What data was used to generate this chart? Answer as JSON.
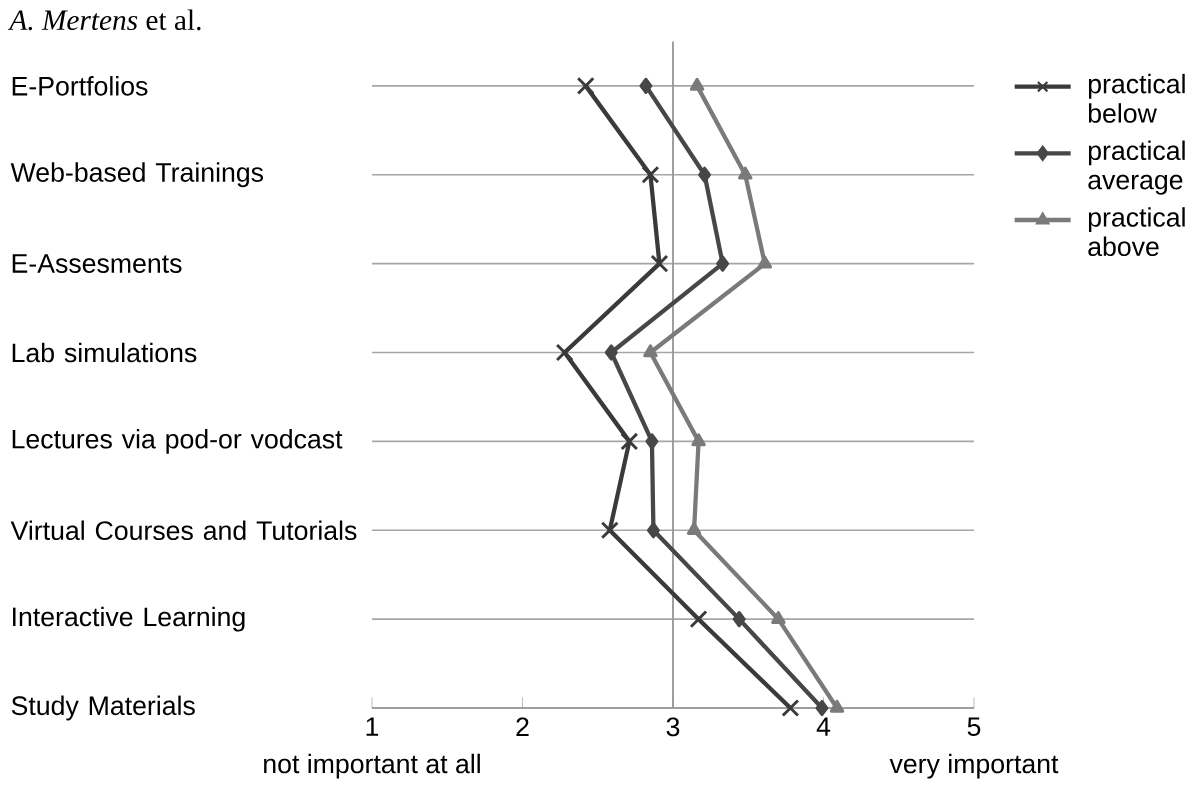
{
  "chart_data": {
    "type": "line",
    "orientation": "horizontal",
    "categories": [
      "E-Portfolios",
      "Web-based Trainings",
      "E-Assesments",
      "Lab simulations",
      "Lectures via pod-or vodcast",
      "Virtual Courses and Tutorials",
      "Interactive Learning",
      "Study Materials"
    ],
    "series": [
      {
        "name": "practical below",
        "color": "#3a3a3a",
        "marker": "cross",
        "values": [
          2.42,
          2.85,
          2.91,
          2.28,
          2.71,
          2.58,
          3.17,
          3.78
        ]
      },
      {
        "name": "practical average",
        "color": "#474747",
        "marker": "diamond",
        "values": [
          2.82,
          3.21,
          3.33,
          2.59,
          2.86,
          2.87,
          3.44,
          3.99
        ]
      },
      {
        "name": "practical above",
        "color": "#7a7a7a",
        "marker": "triangle",
        "values": [
          3.16,
          3.48,
          3.61,
          2.85,
          3.17,
          3.14,
          3.7,
          4.09
        ]
      }
    ],
    "xlim": [
      1,
      5
    ],
    "xticks": [
      1,
      2,
      3,
      4,
      5
    ],
    "grid": "y",
    "legend": "top right",
    "line_style": "solid",
    "ref_lines": [
      {
        "axis": "x",
        "value": 3,
        "color": "#999999"
      }
    ],
    "annotations": [
      "*A. Mertens* et al.",
      "not important at all",
      "very important"
    ]
  }
}
